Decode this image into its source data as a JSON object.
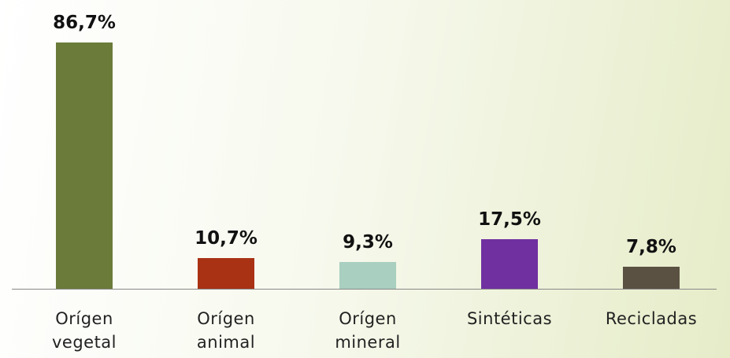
{
  "chart_data": {
    "type": "bar",
    "categories": [
      "Orígen vegetal",
      "Orígen animal",
      "Orígen mineral",
      "Sintéticas",
      "Recicladas"
    ],
    "values": [
      86.7,
      10.7,
      9.3,
      17.5,
      7.8
    ],
    "value_labels": [
      "86,7%",
      "10,7%",
      "9,3%",
      "17,5%",
      "7,8%"
    ],
    "colors": [
      "#6b7b3a",
      "#a93214",
      "#a8cfc0",
      "#7030a0",
      "#5a5142"
    ],
    "ylim": [
      0,
      100
    ]
  }
}
